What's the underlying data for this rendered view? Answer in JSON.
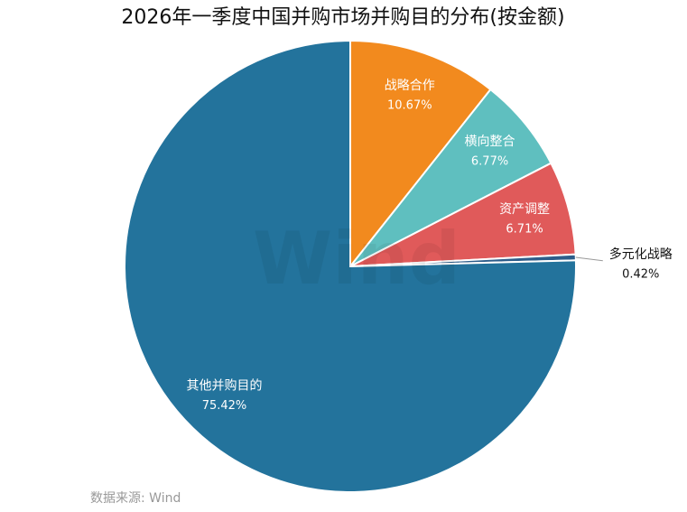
{
  "chart_data": {
    "type": "pie",
    "title": "2026年一季度中国并购市场并购目的分布(按金额)",
    "categories": [
      "战略合作",
      "横向整合",
      "资产调整",
      "多元化战略",
      "其他并购目的"
    ],
    "values": [
      10.67,
      6.77,
      6.71,
      0.42,
      75.42
    ],
    "value_labels": [
      "10.67%",
      "6.77%",
      "6.71%",
      "0.42%",
      "75.42%"
    ],
    "colors": [
      "#f28a1e",
      "#5fbfbf",
      "#e05a5a",
      "#2d5d8a",
      "#23739c"
    ],
    "watermark": "Wind",
    "source": "数据来源: Wind"
  }
}
